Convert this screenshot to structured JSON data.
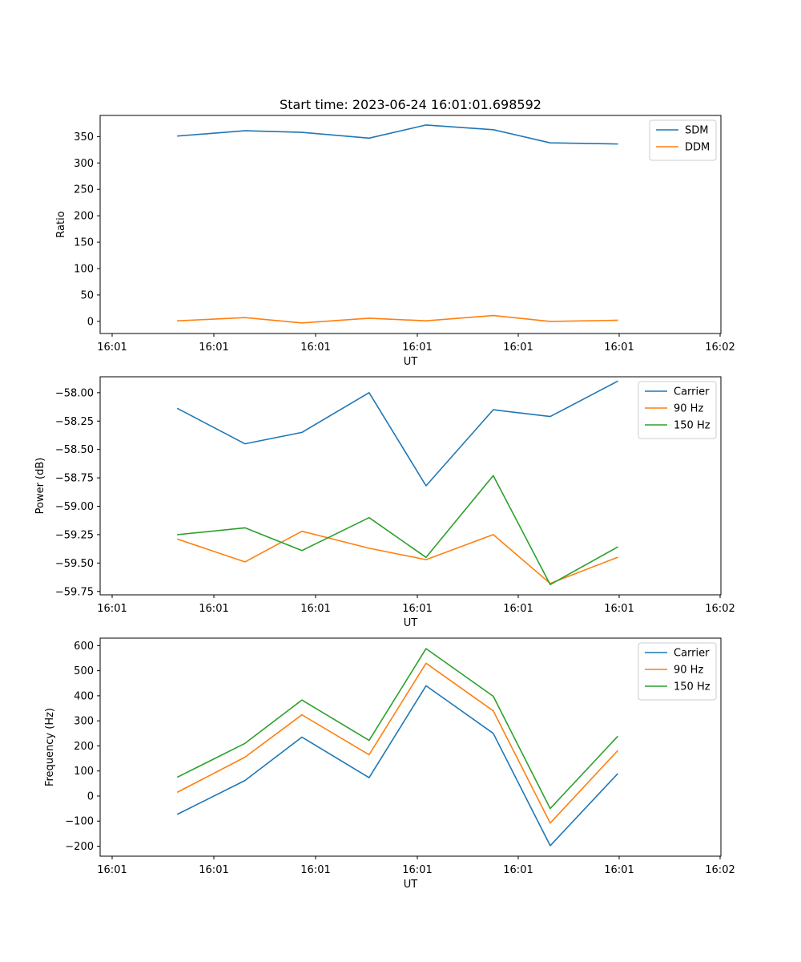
{
  "figure_title": "Start time: 2023-06-24 16:01:01.698592",
  "chart_data": [
    {
      "type": "line",
      "title": "Start time: 2023-06-24 16:01:01.698592",
      "xlabel": "UT",
      "ylabel": "Ratio",
      "x_tick_labels": [
        "16:01",
        "16:01",
        "16:01",
        "16:01",
        "16:01",
        "16:01",
        "16:02"
      ],
      "x": [
        0.75,
        1.4,
        1.95,
        2.6,
        3.15,
        3.8,
        4.35,
        5.0
      ],
      "xlim": [
        0,
        6.0
      ],
      "ylim": [
        -23,
        390
      ],
      "yticks": [
        0,
        50,
        100,
        150,
        200,
        250,
        300,
        350
      ],
      "legend": "upper right",
      "series": [
        {
          "name": "SDM",
          "color": "#1f77b4",
          "values": [
            351,
            361,
            358,
            347,
            372,
            363,
            338,
            336
          ]
        },
        {
          "name": "DDM",
          "color": "#ff7f0e",
          "values": [
            1,
            7,
            -3,
            6,
            1,
            11,
            0,
            2
          ]
        }
      ]
    },
    {
      "type": "line",
      "title": "",
      "xlabel": "UT",
      "ylabel": "Power (dB)",
      "x_tick_labels": [
        "16:01",
        "16:01",
        "16:01",
        "16:01",
        "16:01",
        "16:01",
        "16:02"
      ],
      "x": [
        0.75,
        1.4,
        1.95,
        2.6,
        3.15,
        3.8,
        4.35,
        5.0
      ],
      "xlim": [
        0,
        6.0
      ],
      "ylim": [
        -59.78,
        -57.86
      ],
      "yticks": [
        -59.75,
        -59.5,
        -59.25,
        -59.0,
        -58.75,
        -58.5,
        -58.25,
        -58.0
      ],
      "ytick_labels": [
        "−59.75",
        "−59.50",
        "−59.25",
        "−59.00",
        "−58.75",
        "−58.50",
        "−58.25",
        "−58.00"
      ],
      "legend": "upper right",
      "series": [
        {
          "name": "Carrier",
          "color": "#1f77b4",
          "values": [
            -58.14,
            -58.45,
            -58.35,
            -58.0,
            -58.82,
            -58.15,
            -58.21,
            -57.9
          ]
        },
        {
          "name": "90 Hz",
          "color": "#ff7f0e",
          "values": [
            -59.29,
            -59.49,
            -59.22,
            -59.37,
            -59.47,
            -59.25,
            -59.68,
            -59.45
          ]
        },
        {
          "name": "150 Hz",
          "color": "#2ca02c",
          "values": [
            -59.25,
            -59.19,
            -59.39,
            -59.1,
            -59.45,
            -58.73,
            -59.69,
            -59.36
          ]
        }
      ]
    },
    {
      "type": "line",
      "title": "",
      "xlabel": "UT",
      "ylabel": "Frequency (Hz)",
      "x_tick_labels": [
        "16:01",
        "16:01",
        "16:01",
        "16:01",
        "16:01",
        "16:01",
        "16:02"
      ],
      "x": [
        0.75,
        1.4,
        1.95,
        2.6,
        3.15,
        3.8,
        4.35,
        5.0
      ],
      "xlim": [
        0,
        6.0
      ],
      "ylim": [
        -240,
        630
      ],
      "yticks": [
        -200,
        -100,
        0,
        100,
        200,
        300,
        400,
        500,
        600
      ],
      "ytick_labels": [
        "−200",
        "−100",
        "0",
        "100",
        "200",
        "300",
        "400",
        "500",
        "600"
      ],
      "legend": "upper right",
      "series": [
        {
          "name": "Carrier",
          "color": "#1f77b4",
          "values": [
            -72,
            62,
            235,
            73,
            440,
            250,
            -198,
            88
          ]
        },
        {
          "name": "90 Hz",
          "color": "#ff7f0e",
          "values": [
            16,
            155,
            324,
            165,
            530,
            340,
            -108,
            180
          ]
        },
        {
          "name": "150 Hz",
          "color": "#2ca02c",
          "values": [
            76,
            210,
            383,
            222,
            588,
            398,
            -50,
            237
          ]
        }
      ]
    }
  ]
}
